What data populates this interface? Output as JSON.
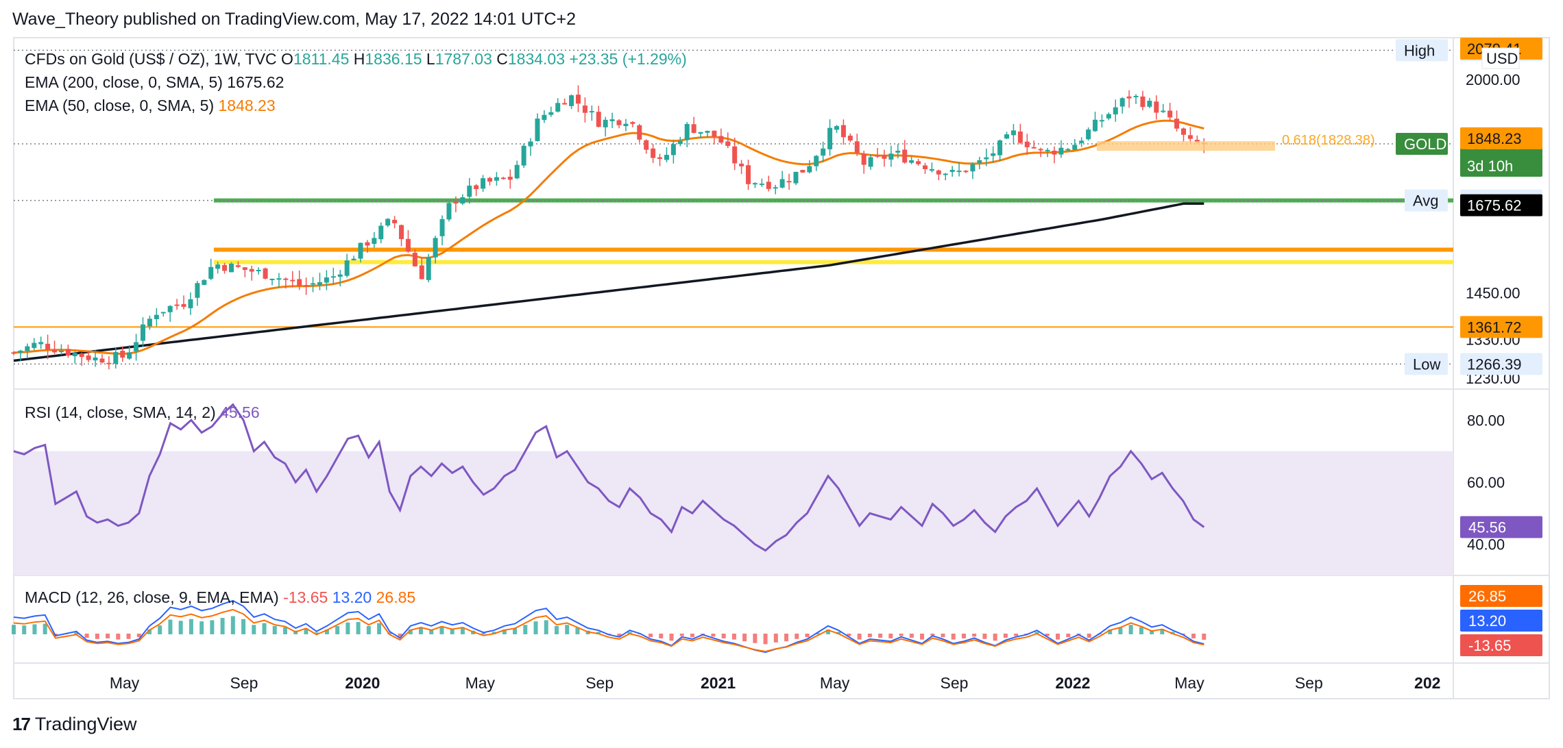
{
  "header": {
    "text": "Wave_Theory published on TradingView.com, May 17, 2022 14:01 UTC+2"
  },
  "footer": {
    "brand": "TradingView",
    "logo_glyph": "17"
  },
  "colors": {
    "up": "#26a69a",
    "down": "#ef5350",
    "ema50": "#f57c00",
    "ema200": "#131722",
    "rsi": "#7e57c2",
    "rsi_band": "#ede7f6",
    "macd": "#2962ff",
    "signal": "#ff6d00",
    "green_line": "#4caf50",
    "orange_line": "#ff9800",
    "yellow_line": "#ffeb3b"
  },
  "chart_data": [
    {
      "type": "candlestick",
      "title": "CFDs on Gold (US$ / OZ), 1W, TVC",
      "ohlc": {
        "o_label": "O",
        "o": "1811.45",
        "h_label": "H",
        "h": "1836.15",
        "l_label": "L",
        "l": "1787.03",
        "c_label": "C",
        "c": "1834.03",
        "change": "+23.35 (+1.29%)"
      },
      "indicators": [
        {
          "label": "EMA (200, close, 0, SMA, 5)",
          "value": "1675.62",
          "color": "#131722"
        },
        {
          "label": "EMA (50, close, 0, SMA, 5)",
          "value": "1848.23",
          "color": "#f57c00"
        }
      ],
      "currency": "USD",
      "ylim": [
        1230,
        2090
      ],
      "y_ticks": [
        "2000.00",
        "1450.00",
        "1330.00",
        "1230.00"
      ],
      "price_badges": [
        {
          "label": "High",
          "value": "2075.14",
          "price": 2075.14,
          "style": "light"
        },
        {
          "label": "GOLD",
          "value": "1834.03",
          "sub": "3d 10h",
          "price": 1834.03,
          "style": "green"
        },
        {
          "label": "",
          "value": "1848.23",
          "price": 1848.23,
          "style": "orange"
        },
        {
          "label": "Avg",
          "value": "1688.03",
          "price": 1688.03,
          "style": "light"
        },
        {
          "label": "",
          "value": "1675.62",
          "price": 1675.62,
          "style": "black"
        },
        {
          "label": "",
          "value": "1361.72",
          "price": 1361.72,
          "style": "orange"
        },
        {
          "label": "Low",
          "value": "1266.39",
          "price": 1266.39,
          "style": "light"
        },
        {
          "label": "",
          "value": "2079.41",
          "price": 2079.41,
          "style": "orange"
        }
      ],
      "annotations": [
        {
          "text": "0.618(1828.38)",
          "price": 1828.38
        }
      ],
      "horizontal_levels": [
        {
          "price": 1688,
          "color": "green",
          "from": "2019-08"
        },
        {
          "price": 1561,
          "color": "orange",
          "from": "2019-08"
        },
        {
          "price": 1529,
          "color": "yellow",
          "from": "2019-08"
        },
        {
          "price": 1361.72,
          "color": "thin-orange",
          "from": "start"
        }
      ],
      "close_series": {
        "x_start": "2019-01-07",
        "step_weeks": 1,
        "anchors": [
          [
            "2019-01",
            1290
          ],
          [
            "2019-02",
            1320
          ],
          [
            "2019-03",
            1300
          ],
          [
            "2019-04",
            1280
          ],
          [
            "2019-05",
            1285
          ],
          [
            "2019-06",
            1400
          ],
          [
            "2019-07",
            1425
          ],
          [
            "2019-08",
            1525
          ],
          [
            "2019-09",
            1510
          ],
          [
            "2019-10",
            1495
          ],
          [
            "2019-11",
            1465
          ],
          [
            "2019-12",
            1490
          ],
          [
            "2020-01",
            1570
          ],
          [
            "2020-02",
            1640
          ],
          [
            "2020-03",
            1490
          ],
          [
            "2020-04",
            1685
          ],
          [
            "2020-05",
            1730
          ],
          [
            "2020-06",
            1745
          ],
          [
            "2020-07",
            1900
          ],
          [
            "2020-08",
            1960
          ],
          [
            "2020-09",
            1890
          ],
          [
            "2020-10",
            1900
          ],
          [
            "2020-11",
            1780
          ],
          [
            "2020-12",
            1880
          ],
          [
            "2021-01",
            1850
          ],
          [
            "2021-02",
            1740
          ],
          [
            "2021-03",
            1730
          ],
          [
            "2021-04",
            1770
          ],
          [
            "2021-05",
            1880
          ],
          [
            "2021-06",
            1780
          ],
          [
            "2021-07",
            1810
          ],
          [
            "2021-08",
            1780
          ],
          [
            "2021-09",
            1755
          ],
          [
            "2021-10",
            1790
          ],
          [
            "2021-11",
            1860
          ],
          [
            "2021-12",
            1810
          ],
          [
            "2022-01",
            1830
          ],
          [
            "2022-02",
            1900
          ],
          [
            "2022-03",
            1960
          ],
          [
            "2022-04",
            1920
          ],
          [
            "2022-05",
            1834
          ]
        ]
      }
    },
    {
      "type": "line",
      "title": "RSI (14, close, SMA, 14, 2)",
      "value": "45.56",
      "ylim": [
        30,
        90
      ],
      "band": [
        30,
        70
      ],
      "y_ticks": [
        "80.00",
        "60.00",
        "40.00"
      ],
      "current_badge": "45.56",
      "series": [
        {
          "name": "RSI",
          "values": [
            70,
            69,
            71,
            72,
            53,
            55,
            57,
            49,
            47,
            48,
            46,
            47,
            50,
            62,
            69,
            79,
            77,
            80,
            76,
            78,
            82,
            85,
            80,
            70,
            73,
            68,
            66,
            60,
            64,
            57,
            62,
            68,
            74,
            75,
            68,
            73,
            57,
            51,
            62,
            65,
            62,
            66,
            63,
            65,
            60,
            56,
            58,
            62,
            64,
            70,
            76,
            78,
            68,
            70,
            65,
            60,
            58,
            54,
            52,
            58,
            55,
            50,
            48,
            44,
            52,
            50,
            54,
            51,
            48,
            46,
            43,
            40,
            38,
            41,
            43,
            47,
            50,
            56,
            62,
            58,
            52,
            46,
            50,
            49,
            48,
            52,
            49,
            46,
            53,
            50,
            46,
            48,
            51,
            47,
            44,
            49,
            52,
            54,
            58,
            52,
            46,
            50,
            54,
            49,
            55,
            62,
            65,
            70,
            66,
            61,
            63,
            58,
            54,
            48,
            45.56
          ]
        }
      ]
    },
    {
      "type": "bar",
      "title": "MACD (12, 26, close, 9, EMA, EMA)",
      "values": {
        "hist": "-13.65",
        "macd": "13.20",
        "signal": "26.85"
      },
      "badges": [
        {
          "value": "26.85",
          "color": "#ff6d00"
        },
        {
          "value": "13.20",
          "color": "#2962ff"
        },
        {
          "value": "-13.65",
          "color": "#ef5350"
        }
      ]
    }
  ],
  "x_axis": {
    "labels": [
      {
        "text": "May",
        "date": "2019-05"
      },
      {
        "text": "Sep",
        "date": "2019-09"
      },
      {
        "text": "2020",
        "date": "2020-01",
        "bold": true
      },
      {
        "text": "May",
        "date": "2020-05"
      },
      {
        "text": "Sep",
        "date": "2020-09"
      },
      {
        "text": "2021",
        "date": "2021-01",
        "bold": true
      },
      {
        "text": "May",
        "date": "2021-05"
      },
      {
        "text": "Sep",
        "date": "2021-09"
      },
      {
        "text": "2022",
        "date": "2022-01",
        "bold": true
      },
      {
        "text": "May",
        "date": "2022-05"
      },
      {
        "text": "Sep",
        "date": "2022-09"
      },
      {
        "text": "202",
        "date": "2023-01",
        "bold": true
      }
    ]
  }
}
